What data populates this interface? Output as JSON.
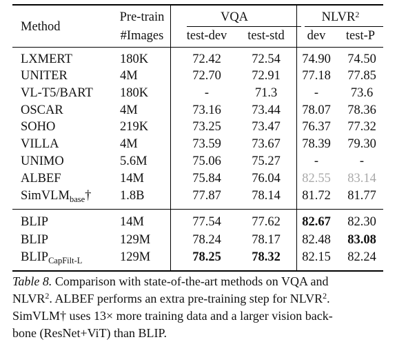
{
  "table": {
    "headers": {
      "method": "Method",
      "pretrain_1": "Pre-train",
      "pretrain_2": "#Images",
      "vqa": "VQA",
      "nlvr": "NLVR",
      "nlvr_sup": "2",
      "test_dev": "test-dev",
      "test_std": "test-std",
      "dev": "dev",
      "test_p": "test-P"
    },
    "rows": [
      {
        "method": "LXMERT",
        "images": "180K",
        "test_dev": "72.42",
        "test_std": "72.54",
        "dev": "74.90",
        "test_p": "74.50"
      },
      {
        "method": "UNITER",
        "images": "4M",
        "test_dev": "72.70",
        "test_std": "72.91",
        "dev": "77.18",
        "test_p": "77.85"
      },
      {
        "method": "VL-T5/BART",
        "images": "180K",
        "test_dev": "-",
        "test_std": "71.3",
        "dev": "-",
        "test_p": "73.6"
      },
      {
        "method": "OSCAR",
        "images": "4M",
        "test_dev": "73.16",
        "test_std": "73.44",
        "dev": "78.07",
        "test_p": "78.36"
      },
      {
        "method": "SOHO",
        "images": "219K",
        "test_dev": "73.25",
        "test_std": "73.47",
        "dev": "76.37",
        "test_p": "77.32"
      },
      {
        "method": "VILLA",
        "images": "4M",
        "test_dev": "73.59",
        "test_std": "73.67",
        "dev": "78.39",
        "test_p": "79.30"
      },
      {
        "method": "UNIMO",
        "images": "5.6M",
        "test_dev": "75.06",
        "test_std": "75.27",
        "dev": "-",
        "test_p": "-"
      },
      {
        "method": "ALBEF",
        "images": "14M",
        "test_dev": "75.84",
        "test_std": "76.04",
        "dev": "82.55",
        "test_p": "83.14"
      },
      {
        "method": "SimVLM",
        "method_sub": "base",
        "method_suffix": "†",
        "images": "1.8B",
        "test_dev": "77.87",
        "test_std": "78.14",
        "dev": "81.72",
        "test_p": "81.77"
      },
      {
        "method": "BLIP",
        "images": "14M",
        "test_dev": "77.54",
        "test_std": "77.62",
        "dev": "82.67",
        "test_p": "82.30"
      },
      {
        "method": "BLIP",
        "images": "129M",
        "test_dev": "78.24",
        "test_std": "78.17",
        "dev": "82.48",
        "test_p": "83.08"
      },
      {
        "method": "BLIP",
        "method_sub": "CapFilt-L",
        "images": "129M",
        "test_dev": "78.25",
        "test_std": "78.32",
        "dev": "82.15",
        "test_p": "82.24"
      }
    ],
    "style": {
      "greyed_cells": [
        "7.dev",
        "7.test_p"
      ],
      "bold_cells": [
        "9.dev",
        "10.test_p",
        "11.test_dev",
        "11.test_std"
      ],
      "grey_color": "#a9a9a9"
    }
  },
  "caption": {
    "label": "Table 8.",
    "line1": " Comparison with state-of-the-art methods on VQA and",
    "line2a": "NLVR",
    "line2_sup": "2",
    "line2b": ". ALBEF performs an extra pre-training step for NLVR",
    "line2_sup2": "2",
    "line2c": ".",
    "line3": "SimVLM† uses 13× more training data and a larger vision back-",
    "line4": "bone (ResNet+ViT) than BLIP."
  }
}
